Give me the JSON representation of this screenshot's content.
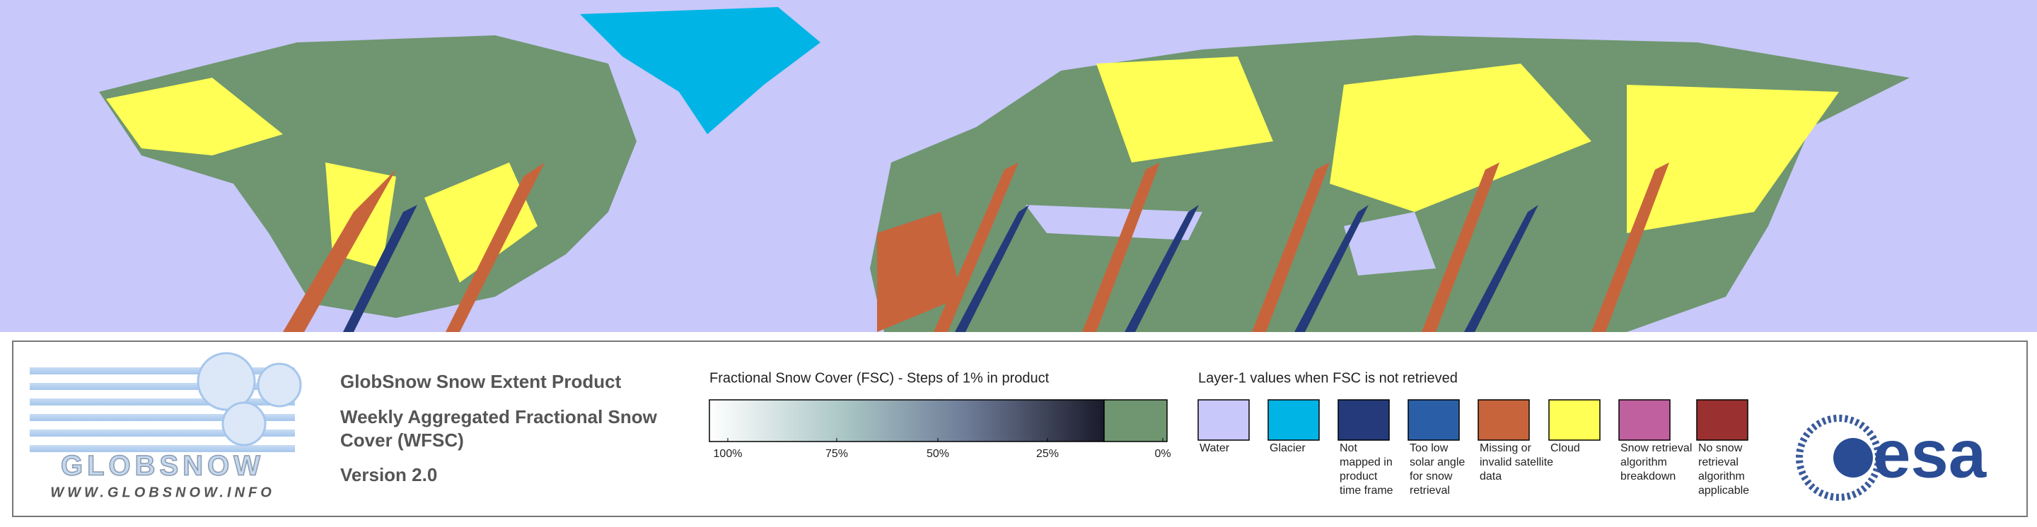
{
  "logo": {
    "name": "GLOBSNOW",
    "url": "WWW.GLOBSNOW.INFO"
  },
  "product": {
    "title": "GlobSnow Snow Extent Product",
    "subtitle_lines": [
      "Weekly Aggregated Fractional Snow",
      "Cover (WFSC)"
    ],
    "version": "Version 2.0"
  },
  "colorbar": {
    "title": "Fractional Snow Cover (FSC) - Steps of 1% in product",
    "tick_labels": [
      "100%",
      "75%",
      "50%",
      "25%",
      "0%"
    ]
  },
  "legend": {
    "title": "Layer-1 values when FSC is not retrieved",
    "items": [
      {
        "color": "#c8c8fa",
        "label_lines": [
          "Water"
        ]
      },
      {
        "color": "#00b4e6",
        "label_lines": [
          "Glacier"
        ]
      },
      {
        "color": "#243a7a",
        "label_lines": [
          "Not",
          "mapped in",
          "product",
          "time frame"
        ]
      },
      {
        "color": "#2a5fa8",
        "label_lines": [
          "Too low",
          "solar angle",
          "for snow",
          "retrieval"
        ]
      },
      {
        "color": "#c8643c",
        "label_lines": [
          "Missing or",
          "invalid satellite",
          "data"
        ]
      },
      {
        "color": "#ffff55",
        "label_lines": [
          "Cloud"
        ]
      },
      {
        "color": "#c0609e",
        "label_lines": [
          "Snow retrieval",
          "algorithm",
          "breakdown"
        ]
      },
      {
        "color": "#9a3030",
        "label_lines": [
          "No snow",
          "retrieval",
          "algorithm",
          "applicable"
        ]
      }
    ]
  },
  "agency": {
    "name": "esa"
  }
}
